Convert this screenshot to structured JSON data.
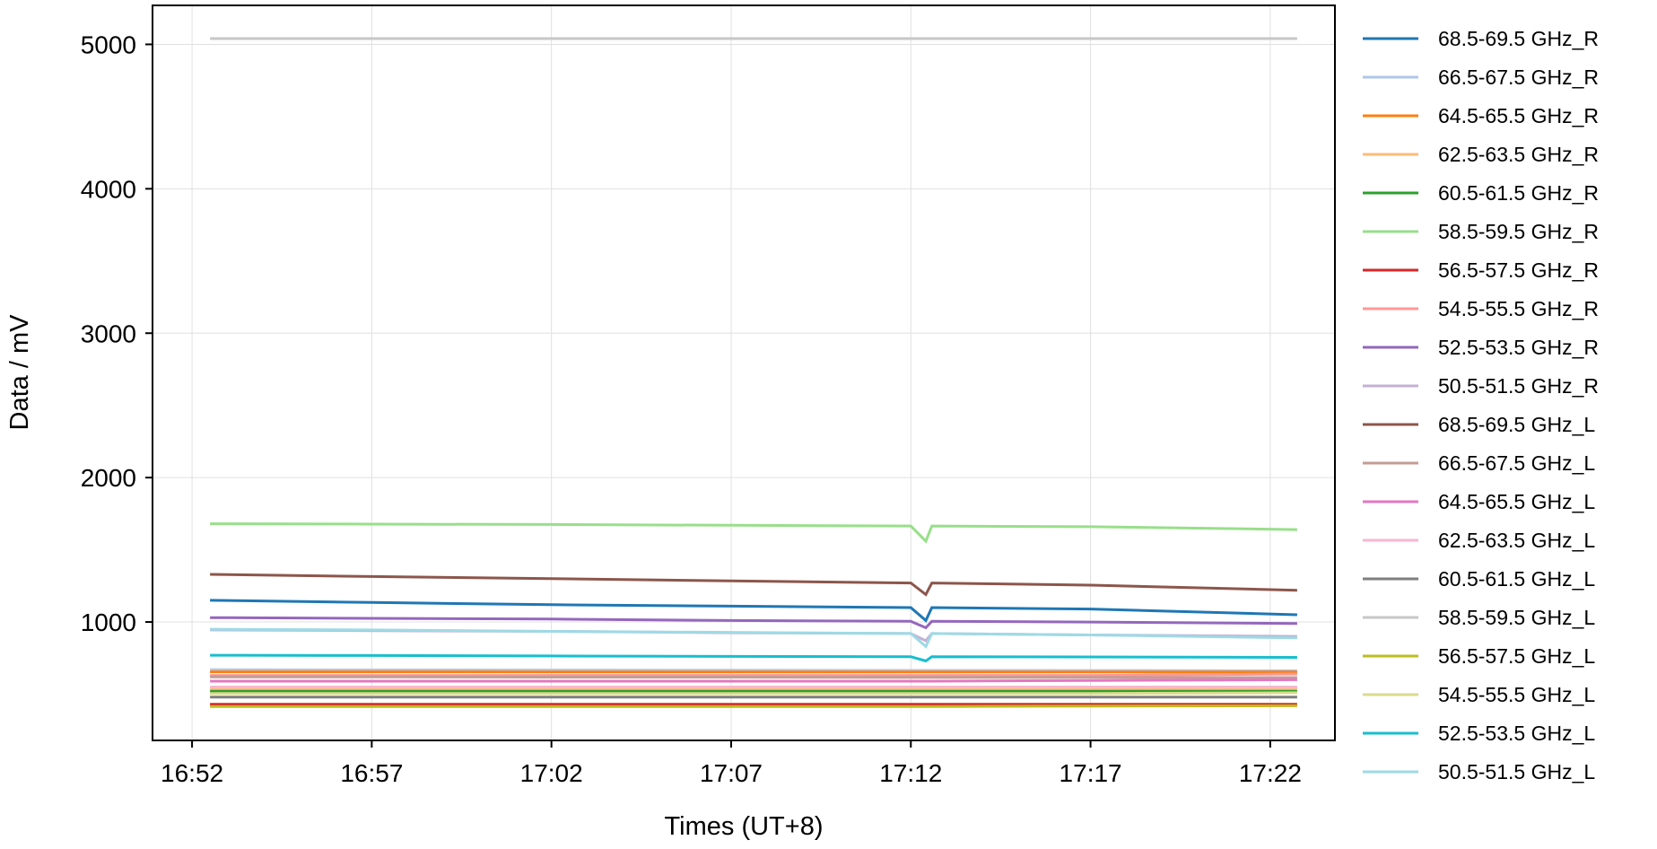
{
  "chart_data": {
    "type": "line",
    "title": "",
    "xlabel": "Times (UT+8)",
    "ylabel": "Data / mV",
    "xlim": [
      "16:50:54",
      "17:23:48"
    ],
    "ylim": [
      180,
      5270
    ],
    "xticks": [
      "16:52",
      "16:57",
      "17:02",
      "17:07",
      "17:12",
      "17:17",
      "17:22"
    ],
    "yticks": [
      1000,
      2000,
      3000,
      4000,
      5000
    ],
    "grid": true,
    "legend_position": "outside-right",
    "x": [
      "16:52:30",
      "16:57:00",
      "17:02:00",
      "17:07:00",
      "17:12:00",
      "17:12:25",
      "17:12:35",
      "17:17:00",
      "17:22:45"
    ],
    "series": [
      {
        "name": "68.5-69.5 GHz_R",
        "color": "#1f77b4",
        "values": [
          1150,
          1135,
          1120,
          1110,
          1100,
          1010,
          1100,
          1090,
          1050
        ]
      },
      {
        "name": "66.5-67.5 GHz_R",
        "color": "#aec7e8",
        "values": [
          670,
          668,
          667,
          666,
          665,
          665,
          665,
          664,
          662
        ]
      },
      {
        "name": "64.5-65.5 GHz_R",
        "color": "#ff7f0e",
        "values": [
          655,
          655,
          654,
          654,
          654,
          654,
          654,
          654,
          654
        ]
      },
      {
        "name": "62.5-63.5 GHz_R",
        "color": "#ffbb78",
        "values": [
          535,
          535,
          535,
          535,
          535,
          535,
          535,
          535,
          535
        ]
      },
      {
        "name": "60.5-61.5 GHz_R",
        "color": "#2ca02c",
        "values": [
          520,
          520,
          520,
          520,
          520,
          520,
          520,
          520,
          520
        ]
      },
      {
        "name": "58.5-59.5 GHz_R",
        "color": "#98df8a",
        "values": [
          1680,
          1678,
          1675,
          1670,
          1665,
          1560,
          1665,
          1660,
          1640
        ]
      },
      {
        "name": "56.5-57.5 GHz_R",
        "color": "#d62728",
        "values": [
          430,
          430,
          430,
          430,
          430,
          430,
          430,
          430,
          430
        ]
      },
      {
        "name": "54.5-55.5 GHz_R",
        "color": "#ff9896",
        "values": [
          630,
          630,
          630,
          630,
          630,
          630,
          630,
          630,
          640
        ]
      },
      {
        "name": "52.5-53.5 GHz_R",
        "color": "#9467bd",
        "values": [
          1030,
          1025,
          1020,
          1010,
          1005,
          960,
          1005,
          1000,
          990
        ]
      },
      {
        "name": "50.5-51.5 GHz_R",
        "color": "#c5b0d5",
        "values": [
          945,
          940,
          935,
          925,
          920,
          870,
          920,
          910,
          900
        ]
      },
      {
        "name": "68.5-69.5 GHz_L",
        "color": "#8c564b",
        "values": [
          1330,
          1315,
          1300,
          1285,
          1270,
          1190,
          1270,
          1255,
          1220
        ]
      },
      {
        "name": "66.5-67.5 GHz_L",
        "color": "#c49c94",
        "values": [
          620,
          620,
          618,
          618,
          617,
          617,
          617,
          616,
          615
        ]
      },
      {
        "name": "64.5-65.5 GHz_L",
        "color": "#e377c2",
        "values": [
          590,
          590,
          590,
          590,
          590,
          590,
          590,
          595,
          600
        ]
      },
      {
        "name": "62.5-63.5 GHz_L",
        "color": "#f7b6d2",
        "values": [
          550,
          550,
          550,
          550,
          550,
          550,
          550,
          550,
          550
        ]
      },
      {
        "name": "60.5-61.5 GHz_L",
        "color": "#7f7f7f",
        "values": [
          480,
          480,
          480,
          480,
          480,
          480,
          480,
          480,
          480
        ]
      },
      {
        "name": "58.5-59.5 GHz_L",
        "color": "#c7c7c7",
        "values": [
          5040,
          5040,
          5040,
          5040,
          5040,
          5040,
          5040,
          5040,
          5040
        ]
      },
      {
        "name": "56.5-57.5 GHz_L",
        "color": "#bcbd22",
        "values": [
          415,
          415,
          415,
          415,
          415,
          415,
          415,
          418,
          420
        ]
      },
      {
        "name": "54.5-55.5 GHz_L",
        "color": "#dbdb8d",
        "values": [
          505,
          505,
          505,
          505,
          505,
          505,
          505,
          505,
          510
        ]
      },
      {
        "name": "52.5-53.5 GHz_L",
        "color": "#17becf",
        "values": [
          770,
          768,
          765,
          762,
          760,
          730,
          760,
          758,
          755
        ]
      },
      {
        "name": "50.5-51.5 GHz_L",
        "color": "#9edae5",
        "values": [
          950,
          945,
          935,
          928,
          920,
          830,
          920,
          910,
          890
        ]
      }
    ]
  }
}
